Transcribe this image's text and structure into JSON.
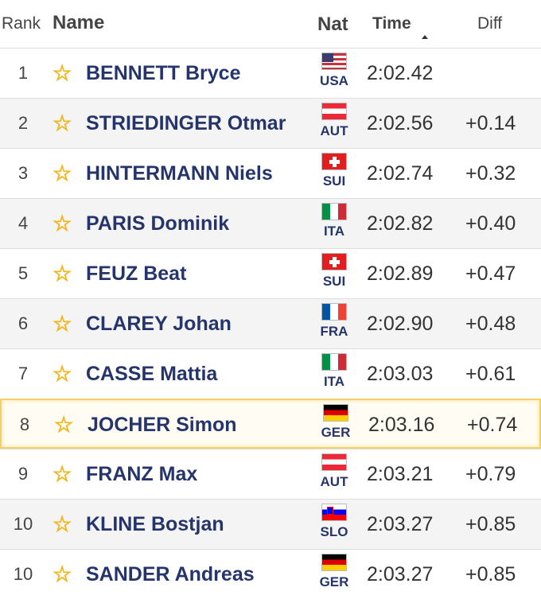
{
  "header": {
    "rank": "Rank",
    "name": "Name",
    "nat": "Nat",
    "time": "Time",
    "diff": "Diff"
  },
  "rows": [
    {
      "rank": "1",
      "name": "BENNETT Bryce",
      "nat": "USA",
      "flag": "usa",
      "time": "2:02.42",
      "diff": ""
    },
    {
      "rank": "2",
      "name": "STRIEDINGER Otmar",
      "nat": "AUT",
      "flag": "aut",
      "time": "2:02.56",
      "diff": "+0.14"
    },
    {
      "rank": "3",
      "name": "HINTERMANN Niels",
      "nat": "SUI",
      "flag": "sui",
      "time": "2:02.74",
      "diff": "+0.32"
    },
    {
      "rank": "4",
      "name": "PARIS Dominik",
      "nat": "ITA",
      "flag": "ita",
      "time": "2:02.82",
      "diff": "+0.40"
    },
    {
      "rank": "5",
      "name": "FEUZ Beat",
      "nat": "SUI",
      "flag": "sui",
      "time": "2:02.89",
      "diff": "+0.47"
    },
    {
      "rank": "6",
      "name": "CLAREY Johan",
      "nat": "FRA",
      "flag": "fra",
      "time": "2:02.90",
      "diff": "+0.48"
    },
    {
      "rank": "7",
      "name": "CASSE Mattia",
      "nat": "ITA",
      "flag": "ita",
      "time": "2:03.03",
      "diff": "+0.61"
    },
    {
      "rank": "8",
      "name": "JOCHER Simon",
      "nat": "GER",
      "flag": "ger",
      "time": "2:03.16",
      "diff": "+0.74",
      "highlighted": true
    },
    {
      "rank": "9",
      "name": "FRANZ Max",
      "nat": "AUT",
      "flag": "aut",
      "time": "2:03.21",
      "diff": "+0.79"
    },
    {
      "rank": "10",
      "name": "KLINE Bostjan",
      "nat": "SLO",
      "flag": "slo",
      "time": "2:03.27",
      "diff": "+0.85"
    },
    {
      "rank": "10",
      "name": "SANDER Andreas",
      "nat": "GER",
      "flag": "ger",
      "time": "2:03.27",
      "diff": "+0.85"
    }
  ],
  "colors": {
    "name_text": "#25356b",
    "star": "#f3b51b",
    "highlight_border": "#f3d06a",
    "alt_row": "#f4f4f4"
  },
  "icons": {
    "favorite": "star-icon",
    "sort": "sort-ascending-icon"
  }
}
